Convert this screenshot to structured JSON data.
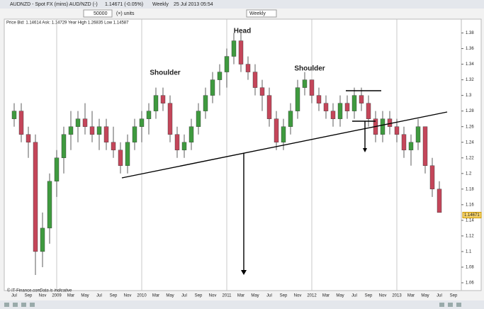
{
  "header": {
    "symbol": "AUDNZD - Spot FX (mins) AUD/NZD (-)",
    "change": "1.14671 (-0.05%)",
    "period": "Weekly",
    "timestamp": "25 Jul 2013 05:54"
  },
  "toolbar": {
    "quantity": "50000",
    "units": "(×) units",
    "interval": "Weekly"
  },
  "info": "Price  Bid: 1.14614 Ask: 1.14729 Year High 1.26835 Low 1.14587",
  "footer": {
    "source": "© IT-Finance.com",
    "note": "Data is indicative"
  },
  "chart_data": {
    "type": "candlestick",
    "annotations": [
      "Head",
      "Shoulder",
      "Shoulder"
    ],
    "categories": [
      "Jul",
      null,
      "Sep",
      null,
      "Nov",
      null,
      "2009",
      null,
      "Mar",
      null,
      "May",
      null,
      "Jul",
      null,
      "Sep",
      null,
      "Nov",
      null,
      "2010",
      null,
      "Mar",
      null,
      "May",
      null,
      "Jul",
      null,
      "Sep",
      null,
      "Nov",
      null,
      "2011",
      null,
      "Mar",
      null,
      "May",
      null,
      "Jul",
      null,
      "Sep",
      null,
      "Nov",
      null,
      "2012",
      null,
      "Mar",
      null,
      "May",
      null,
      "Jul",
      null,
      "Sep",
      null,
      "Nov",
      null,
      "2013",
      null,
      "Mar",
      null,
      "May",
      null,
      "Jul",
      null,
      "Sep"
    ],
    "open": [
      1.27,
      1.28,
      1.25,
      1.24,
      1.1,
      1.13,
      1.19,
      1.22,
      1.25,
      1.26,
      1.27,
      1.26,
      1.25,
      1.26,
      1.24,
      1.23,
      1.21,
      1.24,
      1.26,
      1.27,
      1.28,
      1.3,
      1.29,
      1.25,
      1.23,
      1.24,
      1.26,
      1.28,
      1.3,
      1.32,
      1.33,
      1.35,
      1.37,
      1.34,
      1.33,
      1.31,
      1.3,
      1.27,
      1.24,
      1.26,
      1.28,
      1.31,
      1.32,
      1.3,
      1.29,
      1.28,
      1.27,
      1.29,
      1.28,
      1.3,
      1.29,
      1.27,
      1.25,
      1.27,
      1.26,
      1.25,
      1.23,
      1.24,
      1.26,
      1.21,
      1.18,
      null,
      null
    ],
    "high": [
      1.29,
      1.29,
      1.26,
      1.25,
      1.15,
      1.2,
      1.23,
      1.26,
      1.28,
      1.28,
      1.29,
      1.28,
      1.27,
      1.27,
      1.26,
      1.24,
      1.25,
      1.27,
      1.28,
      1.29,
      1.31,
      1.31,
      1.3,
      1.26,
      1.25,
      1.27,
      1.29,
      1.31,
      1.33,
      1.34,
      1.36,
      1.38,
      1.38,
      1.35,
      1.34,
      1.32,
      1.31,
      1.28,
      1.27,
      1.29,
      1.32,
      1.33,
      1.32,
      1.31,
      1.3,
      1.29,
      1.3,
      1.3,
      1.31,
      1.31,
      1.3,
      1.28,
      1.28,
      1.28,
      1.27,
      1.26,
      1.25,
      1.27,
      1.26,
      1.22,
      1.19,
      null,
      null
    ],
    "low": [
      1.26,
      1.24,
      1.22,
      1.07,
      1.08,
      1.11,
      1.17,
      1.2,
      1.23,
      1.24,
      1.25,
      1.24,
      1.23,
      1.23,
      1.22,
      1.2,
      1.2,
      1.23,
      1.24,
      1.25,
      1.27,
      1.28,
      1.24,
      1.22,
      1.22,
      1.23,
      1.25,
      1.27,
      1.29,
      1.3,
      1.31,
      1.34,
      1.33,
      1.32,
      1.3,
      1.28,
      1.26,
      1.23,
      1.23,
      1.25,
      1.27,
      1.3,
      1.29,
      1.28,
      1.27,
      1.26,
      1.26,
      1.27,
      1.27,
      1.28,
      1.26,
      1.24,
      1.24,
      1.25,
      1.24,
      1.22,
      1.21,
      1.23,
      1.2,
      1.17,
      1.15,
      null,
      null
    ],
    "close": [
      1.28,
      1.25,
      1.24,
      1.1,
      1.13,
      1.19,
      1.22,
      1.25,
      1.26,
      1.27,
      1.26,
      1.25,
      1.26,
      1.24,
      1.23,
      1.21,
      1.24,
      1.26,
      1.27,
      1.28,
      1.3,
      1.29,
      1.25,
      1.23,
      1.24,
      1.26,
      1.28,
      1.3,
      1.32,
      1.33,
      1.35,
      1.37,
      1.34,
      1.33,
      1.31,
      1.3,
      1.27,
      1.24,
      1.26,
      1.28,
      1.31,
      1.32,
      1.3,
      1.29,
      1.28,
      1.27,
      1.29,
      1.28,
      1.3,
      1.29,
      1.27,
      1.25,
      1.27,
      1.26,
      1.25,
      1.23,
      1.24,
      1.26,
      1.21,
      1.18,
      1.15,
      null,
      null
    ],
    "up_color": "#3f9a3f",
    "down_color": "#c4465a",
    "last_price": 1.14671,
    "ylim": [
      1.05,
      1.395
    ],
    "yticks": [
      1.06,
      1.08,
      1.1,
      1.12,
      1.14,
      1.16,
      1.18,
      1.2,
      1.22,
      1.24,
      1.26,
      1.28,
      1.3,
      1.32,
      1.34,
      1.36,
      1.38
    ]
  }
}
